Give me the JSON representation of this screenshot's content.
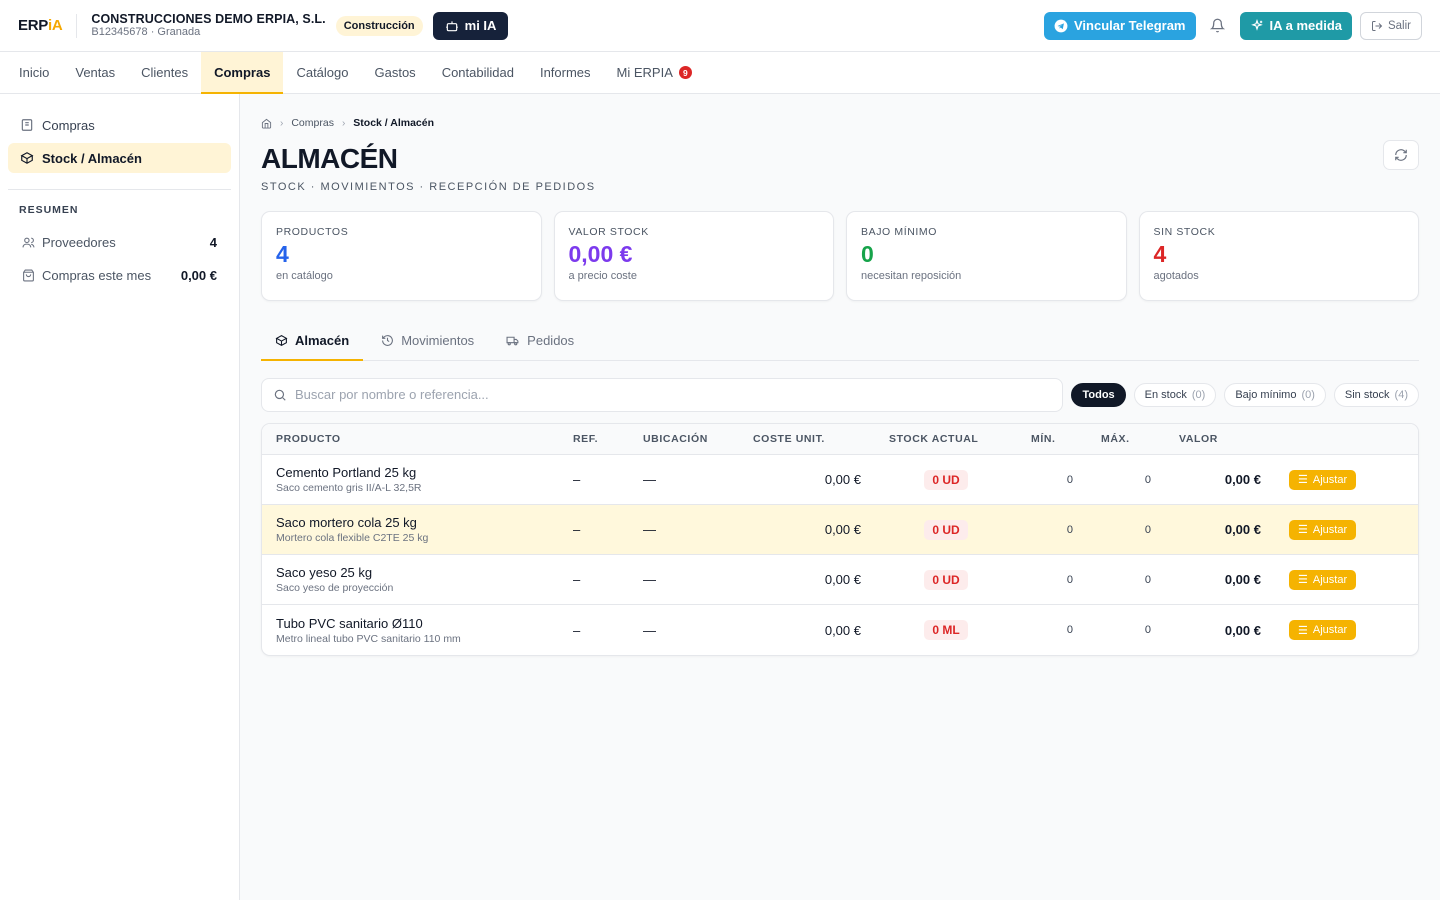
{
  "header": {
    "logo_main": "ERP",
    "logo_accent": "iA",
    "company_name": "CONSTRUCCIONES DEMO ERPIA, S.L.",
    "company_sub": "B12345678 · Granada",
    "sector_badge": "Construcción",
    "mia_label": "mi IA",
    "telegram_label": "Vincular Telegram",
    "ia_medida_label": "IA a medida",
    "salir_label": "Salir"
  },
  "nav": {
    "items": [
      {
        "label": "Inicio"
      },
      {
        "label": "Ventas"
      },
      {
        "label": "Clientes"
      },
      {
        "label": "Compras"
      },
      {
        "label": "Catálogo"
      },
      {
        "label": "Gastos"
      },
      {
        "label": "Contabilidad"
      },
      {
        "label": "Informes"
      },
      {
        "label": "Mi ERPIA"
      }
    ],
    "mi_erpia_badge": "9"
  },
  "sidebar": {
    "items": [
      {
        "label": "Compras"
      },
      {
        "label": "Stock / Almacén"
      }
    ],
    "section_title": "RESUMEN",
    "stats": [
      {
        "label": "Proveedores",
        "value": "4"
      },
      {
        "label": "Compras este mes",
        "value": "0,00 €"
      }
    ]
  },
  "breadcrumb": {
    "level1": "Compras",
    "level2": "Stock / Almacén"
  },
  "page": {
    "title": "ALMACÉN",
    "subtitle": "STOCK · MOVIMIENTOS · RECEPCIÓN DE PEDIDOS"
  },
  "cards": [
    {
      "title": "PRODUCTOS",
      "value": "4",
      "sub": "en catálogo",
      "color": "#2563eb"
    },
    {
      "title": "VALOR STOCK",
      "value": "0,00 €",
      "sub": "a precio coste",
      "color": "#7c3aed"
    },
    {
      "title": "BAJO MÍNIMO",
      "value": "0",
      "sub": "necesitan reposición",
      "color": "#16a34a"
    },
    {
      "title": "SIN STOCK",
      "value": "4",
      "sub": "agotados",
      "color": "#dc2626"
    }
  ],
  "tabs": [
    {
      "label": "Almacén"
    },
    {
      "label": "Movimientos"
    },
    {
      "label": "Pedidos"
    }
  ],
  "search": {
    "placeholder": "Buscar por nombre o referencia..."
  },
  "filters": [
    {
      "label": "Todos",
      "count": ""
    },
    {
      "label": "En stock",
      "count": "(0)"
    },
    {
      "label": "Bajo mínimo",
      "count": "(0)"
    },
    {
      "label": "Sin stock",
      "count": "(4)"
    }
  ],
  "table": {
    "columns": [
      "PRODUCTO",
      "REF.",
      "UBICACIÓN",
      "COSTE UNIT.",
      "STOCK ACTUAL",
      "MÍN.",
      "MÁX.",
      "VALOR"
    ],
    "action_label": "Ajustar",
    "rows": [
      {
        "name": "Cemento Portland 25 kg",
        "desc": "Saco cemento gris II/A-L 32,5R",
        "ref": "–",
        "ubicacion": "—",
        "coste": "0,00 €",
        "stock": "0 UD",
        "min": "0",
        "max": "0",
        "valor": "0,00 €"
      },
      {
        "name": "Saco mortero cola 25 kg",
        "desc": "Mortero cola flexible C2TE 25 kg",
        "ref": "–",
        "ubicacion": "—",
        "coste": "0,00 €",
        "stock": "0 UD",
        "min": "0",
        "max": "0",
        "valor": "0,00 €"
      },
      {
        "name": "Saco yeso 25 kg",
        "desc": "Saco yeso de proyección",
        "ref": "–",
        "ubicacion": "—",
        "coste": "0,00 €",
        "stock": "0 UD",
        "min": "0",
        "max": "0",
        "valor": "0,00 €"
      },
      {
        "name": "Tubo PVC sanitario Ø110",
        "desc": "Metro lineal tubo PVC sanitario 110 mm",
        "ref": "–",
        "ubicacion": "—",
        "coste": "0,00 €",
        "stock": "0 ML",
        "min": "0",
        "max": "0",
        "valor": "0,00 €"
      }
    ]
  }
}
